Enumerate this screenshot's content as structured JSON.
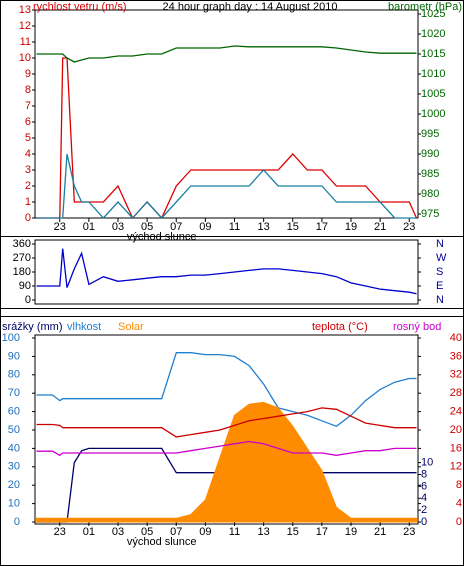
{
  "chart_data": [
    {
      "type": "line",
      "title": "24 hour graph day : 14 August 2010",
      "x": [
        -2.6,
        -1.5,
        -1,
        -0.8,
        -0.5,
        0,
        0.5,
        1,
        2,
        3,
        4,
        5,
        6,
        7,
        8,
        9,
        10,
        11,
        12,
        13,
        14,
        15,
        16,
        17,
        18,
        19,
        20,
        21,
        22,
        23,
        23.5
      ],
      "xlim": [
        -2.7,
        23.6
      ],
      "xticks": [
        {
          "value": -1,
          "label": "23"
        },
        {
          "value": 1,
          "label": "01"
        },
        {
          "value": 3,
          "label": "03"
        },
        {
          "value": 5,
          "label": "05"
        },
        {
          "value": 7,
          "label": "07"
        },
        {
          "value": 9,
          "label": "09"
        },
        11,
        13,
        15,
        17,
        19,
        21,
        23
      ],
      "annotation": {
        "text": "východ slunce",
        "x": 6
      },
      "ylim": [
        0,
        13
      ],
      "yticks": [
        0,
        1,
        2,
        3,
        4,
        5,
        6,
        7,
        8,
        9,
        10,
        11,
        12,
        13
      ],
      "ycolor": "#cc0000",
      "y2lim": [
        974,
        1026
      ],
      "y2ticks": [
        975,
        980,
        985,
        990,
        995,
        1000,
        1005,
        1010,
        1015,
        1020,
        1025
      ],
      "y2color": "#006600",
      "series": [
        {
          "name": "rychlost vetru (m/s)",
          "color": "#dd0000",
          "values": [
            0,
            0,
            0,
            10,
            10,
            1,
            1,
            1,
            1,
            2,
            0,
            1,
            0,
            2,
            3,
            3,
            3,
            3,
            3,
            3,
            3,
            4,
            3,
            3,
            2,
            2,
            2,
            1,
            1,
            1,
            0
          ]
        },
        {
          "color": "#1a7fa0",
          "values": [
            0,
            0,
            0,
            0,
            4,
            2,
            1,
            1,
            0,
            1,
            0,
            1,
            0,
            1,
            2,
            2,
            2,
            2,
            2,
            3,
            2,
            2,
            2,
            2,
            1,
            1,
            1,
            1,
            0,
            0,
            0
          ]
        },
        {
          "name": "barometr (hPa)",
          "color": "#006600",
          "axis": "y2",
          "values": [
            1015,
            1015,
            1015,
            1015,
            1014,
            1013,
            1013.5,
            1014,
            1014,
            1014.5,
            1014.5,
            1015,
            1015,
            1016.5,
            1016.5,
            1016.5,
            1016.5,
            1017,
            1016.8,
            1016.8,
            1016.8,
            1016.8,
            1016.8,
            1016.8,
            1016.5,
            1016,
            1015.5,
            1015.2,
            1015.2,
            1015.2,
            1015.2
          ]
        }
      ]
    },
    {
      "type": "line",
      "x": [
        -2.6,
        -1.5,
        -1,
        -0.8,
        -0.5,
        0,
        0.5,
        1,
        2,
        3,
        4,
        5,
        6,
        7,
        8,
        9,
        10,
        11,
        12,
        13,
        14,
        15,
        16,
        17,
        18,
        19,
        20,
        21,
        22,
        23,
        23.5
      ],
      "xlim": [
        -2.7,
        23.6
      ],
      "ylim": [
        0,
        360
      ],
      "yticks": [
        0,
        90,
        180,
        270,
        360
      ],
      "ycolor": "#000000",
      "y2lim": [
        0,
        360
      ],
      "y2ticks": [
        {
          "value": 360,
          "label": "N"
        },
        {
          "value": 270,
          "label": "W"
        },
        {
          "value": 180,
          "label": "S"
        },
        {
          "value": 90,
          "label": "E"
        },
        {
          "value": 0,
          "label": "N"
        }
      ],
      "y2color": "#000099",
      "series": [
        {
          "color": "#0000cc",
          "values": [
            90,
            90,
            90,
            330,
            80,
            200,
            300,
            100,
            150,
            120,
            130,
            140,
            150,
            150,
            160,
            160,
            170,
            180,
            190,
            200,
            200,
            190,
            180,
            170,
            150,
            110,
            90,
            70,
            60,
            50,
            40
          ]
        }
      ]
    },
    {
      "type": "line",
      "x": [
        -2.6,
        -1.5,
        -1,
        -0.8,
        -0.5,
        0,
        0.5,
        1,
        2,
        3,
        4,
        5,
        6,
        7,
        8,
        9,
        10,
        11,
        12,
        13,
        14,
        15,
        16,
        17,
        18,
        19,
        20,
        21,
        22,
        23,
        23.5
      ],
      "xlim": [
        -2.7,
        23.6
      ],
      "xticks": [
        {
          "value": -1,
          "label": "23"
        },
        {
          "value": 1,
          "label": "01"
        },
        {
          "value": 3,
          "label": "03"
        },
        {
          "value": 5,
          "label": "05"
        },
        {
          "value": 7,
          "label": "07"
        },
        {
          "value": 9,
          "label": "09"
        },
        11,
        13,
        15,
        17,
        19,
        21,
        23
      ],
      "annotation": {
        "text": "východ slunce",
        "x": 6
      },
      "ylim": [
        0,
        100
      ],
      "yticks": [
        0,
        10,
        20,
        30,
        40,
        50,
        60,
        70,
        80,
        90,
        100
      ],
      "ycolor": "#1f6fbf",
      "y2lim": [
        0,
        40
      ],
      "y2ticks": [
        0,
        4,
        8,
        12,
        16,
        20,
        24,
        28,
        32,
        36,
        40
      ],
      "y2color": "#cc0000",
      "y3lim": [
        0,
        31
      ],
      "y3ticks": [
        0,
        2,
        4,
        6,
        8,
        10
      ],
      "y3color": "#000066",
      "series": [
        {
          "name": "srážky (mm)",
          "color": "#000066",
          "axis": "y3",
          "values": [
            0,
            0,
            0,
            0,
            0,
            10,
            12,
            12.4,
            12.4,
            12.4,
            12.4,
            12.4,
            12.4,
            8.3,
            8.3,
            8.3,
            8.3,
            8.3,
            8.3,
            8.3,
            8.3,
            8.3,
            8.3,
            8.3,
            8.3,
            8.3,
            8.3,
            8.3,
            8.3,
            8.3,
            8.3
          ]
        },
        {
          "name": "vlhkost",
          "color": "#1f7fcf",
          "values": [
            69,
            69,
            66,
            67,
            67,
            67,
            67,
            67,
            67,
            67,
            67,
            67,
            67,
            92,
            92,
            91,
            91,
            90,
            85,
            75,
            62,
            60,
            58,
            55,
            52,
            58,
            66,
            72,
            76,
            78,
            78
          ]
        },
        {
          "name": "Solar",
          "color": "#ff8c00",
          "fill": true,
          "values": [
            2,
            2,
            2,
            2,
            2,
            2,
            2,
            2,
            2,
            2,
            2,
            2,
            2,
            2,
            4,
            12,
            35,
            58,
            64,
            65,
            62,
            52,
            40,
            28,
            8,
            2,
            2,
            2,
            2,
            2,
            2
          ]
        },
        {
          "name": "teplota (°C)",
          "color": "#cc0000",
          "axis": "y2",
          "values": [
            21.2,
            21.2,
            21,
            20.5,
            20.5,
            20.5,
            20.5,
            20.5,
            20.5,
            20.5,
            20.5,
            20.5,
            20.5,
            18.5,
            19,
            19.5,
            20,
            21,
            22,
            22.5,
            23,
            23.5,
            24,
            24.8,
            24.5,
            23,
            21.5,
            21,
            20.5,
            20.5,
            20.5
          ]
        },
        {
          "name": "rosný bod",
          "color": "#cc00cc",
          "axis": "y2",
          "values": [
            15.4,
            15.4,
            14.5,
            15,
            15,
            15,
            15,
            15,
            15,
            15,
            15,
            15,
            15,
            15,
            15.5,
            16,
            16.5,
            17,
            17.5,
            17,
            16,
            15,
            15,
            15,
            14.5,
            15,
            15.5,
            15.5,
            16,
            16,
            16
          ]
        }
      ]
    }
  ]
}
